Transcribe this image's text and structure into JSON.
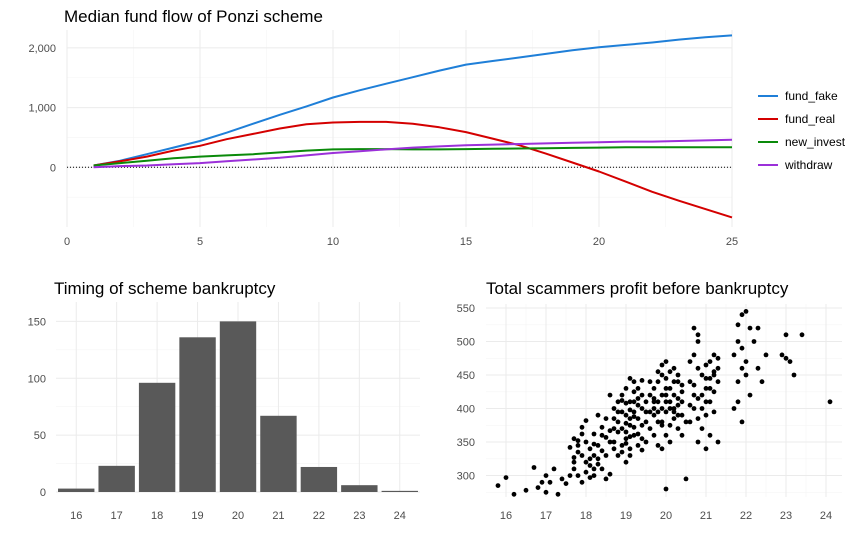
{
  "chart_data": [
    {
      "type": "line",
      "title": "Median fund flow of Ponzi scheme",
      "xlabel": "",
      "ylabel": "",
      "xlim": [
        0,
        25
      ],
      "ylim": [
        -1000,
        2300
      ],
      "x_ticks": [
        0,
        5,
        10,
        15,
        20,
        25
      ],
      "y_ticks": [
        0,
        1000,
        2000
      ],
      "y_tick_labels": [
        "0",
        "1,000",
        "2,000"
      ],
      "reference_line": {
        "y": 0,
        "style": "dotted"
      },
      "grid": true,
      "legend_position": "right",
      "x": [
        1,
        2,
        3,
        4,
        5,
        6,
        7,
        8,
        9,
        10,
        11,
        12,
        13,
        14,
        15,
        16,
        17,
        18,
        19,
        20,
        21,
        22,
        23,
        24,
        25
      ],
      "series": [
        {
          "name": "fund_fake",
          "color": "#1f7fd8",
          "values": [
            30,
            110,
            220,
            330,
            440,
            580,
            730,
            880,
            1020,
            1170,
            1290,
            1400,
            1510,
            1620,
            1720,
            1780,
            1840,
            1900,
            1960,
            2010,
            2050,
            2090,
            2140,
            2180,
            2210
          ]
        },
        {
          "name": "fund_real",
          "color": "#d40000",
          "values": [
            30,
            100,
            180,
            280,
            360,
            470,
            560,
            650,
            720,
            750,
            760,
            760,
            730,
            670,
            590,
            480,
            370,
            230,
            80,
            -70,
            -240,
            -410,
            -560,
            -700,
            -840
          ]
        },
        {
          "name": "new_invest",
          "color": "#0a8a0a",
          "values": [
            30,
            70,
            110,
            150,
            180,
            200,
            220,
            250,
            280,
            300,
            305,
            305,
            300,
            300,
            305,
            310,
            315,
            320,
            325,
            330,
            335,
            335,
            335,
            335,
            335
          ]
        },
        {
          "name": "withdraw",
          "color": "#9b30d9",
          "values": [
            0,
            20,
            30,
            50,
            70,
            100,
            130,
            160,
            200,
            240,
            270,
            300,
            330,
            350,
            370,
            380,
            390,
            400,
            410,
            420,
            430,
            430,
            440,
            450,
            460
          ]
        }
      ]
    },
    {
      "type": "bar",
      "title": "Timing of scheme bankruptcy",
      "xlabel": "",
      "ylabel": "",
      "categories": [
        "16",
        "17",
        "18",
        "19",
        "20",
        "21",
        "22",
        "23",
        "24"
      ],
      "values": [
        3,
        23,
        96,
        136,
        150,
        67,
        22,
        6,
        1
      ],
      "ylim": [
        0,
        160
      ],
      "y_ticks": [
        0,
        50,
        100,
        150
      ],
      "bar_color": "#595959",
      "grid": true
    },
    {
      "type": "scatter",
      "title": "Total scammers profit before bankruptcy",
      "xlabel": "",
      "ylabel": "",
      "xlim": [
        15.5,
        24.4
      ],
      "ylim": [
        268,
        556
      ],
      "x_ticks": [
        16,
        17,
        18,
        19,
        20,
        21,
        22,
        23,
        24
      ],
      "y_ticks": [
        300,
        350,
        400,
        450,
        500,
        550
      ],
      "point_color": "#000000",
      "grid": true,
      "points": [
        [
          16.0,
          297
        ],
        [
          15.8,
          285
        ],
        [
          16.2,
          272
        ],
        [
          16.5,
          278
        ],
        [
          16.8,
          282
        ],
        [
          17.0,
          300
        ],
        [
          16.9,
          290
        ],
        [
          17.2,
          310
        ],
        [
          17.1,
          290
        ],
        [
          17.4,
          295
        ],
        [
          17.3,
          272
        ],
        [
          17.6,
          300
        ],
        [
          17.5,
          288
        ],
        [
          16.7,
          312
        ],
        [
          17.0,
          275
        ],
        [
          17.7,
          320
        ],
        [
          17.8,
          345
        ],
        [
          17.9,
          330
        ],
        [
          17.7,
          310
        ],
        [
          18.0,
          350
        ],
        [
          17.8,
          300
        ],
        [
          17.9,
          372
        ],
        [
          18.0,
          320
        ],
        [
          17.7,
          355
        ],
        [
          18.1,
          340
        ],
        [
          18.2,
          362
        ],
        [
          17.9,
          290
        ],
        [
          18.0,
          305
        ],
        [
          17.8,
          335
        ],
        [
          18.1,
          315
        ],
        [
          18.2,
          330
        ],
        [
          17.6,
          342
        ],
        [
          18.3,
          345
        ],
        [
          18.4,
          360
        ],
        [
          18.2,
          300
        ],
        [
          18.3,
          325
        ],
        [
          18.4,
          310
        ],
        [
          18.5,
          385
        ],
        [
          18.6,
          350
        ],
        [
          18.4,
          337
        ],
        [
          18.3,
          390
        ],
        [
          18.5,
          330
        ],
        [
          18.6,
          302
        ],
        [
          18.5,
          295
        ],
        [
          18.0,
          382
        ],
        [
          17.9,
          362
        ],
        [
          17.8,
          352
        ],
        [
          17.7,
          327
        ],
        [
          18.1,
          297
        ],
        [
          18.2,
          347
        ],
        [
          18.3,
          317
        ],
        [
          18.4,
          372
        ],
        [
          18.6,
          367
        ],
        [
          18.7,
          340
        ],
        [
          18.5,
          357
        ],
        [
          18.1,
          325
        ],
        [
          18.2,
          310
        ],
        [
          18.7,
          400
        ],
        [
          18.8,
          380
        ],
        [
          18.9,
          420
        ],
        [
          18.7,
          350
        ],
        [
          18.8,
          330
        ],
        [
          18.9,
          370
        ],
        [
          19.0,
          390
        ],
        [
          19.1,
          410
        ],
        [
          19.2,
          440
        ],
        [
          18.8,
          365
        ],
        [
          18.9,
          345
        ],
        [
          19.0,
          355
        ],
        [
          19.1,
          375
        ],
        [
          19.2,
          395
        ],
        [
          19.3,
          405
        ],
        [
          19.4,
          420
        ],
        [
          18.7,
          385
        ],
        [
          18.8,
          410
        ],
        [
          18.9,
          395
        ],
        [
          19.0,
          365
        ],
        [
          19.1,
          340
        ],
        [
          19.2,
          360
        ],
        [
          19.3,
          385
        ],
        [
          19.4,
          375
        ],
        [
          19.5,
          395
        ],
        [
          19.0,
          430
        ],
        [
          19.1,
          445
        ],
        [
          19.2,
          425
        ],
        [
          19.3,
          345
        ],
        [
          19.4,
          355
        ],
        [
          18.9,
          335
        ],
        [
          19.0,
          320
        ],
        [
          19.1,
          330
        ],
        [
          19.2,
          410
        ],
        [
          19.3,
          415
        ],
        [
          19.4,
          400
        ],
        [
          19.5,
          350
        ],
        [
          18.6,
          420
        ],
        [
          18.7,
          370
        ],
        [
          18.8,
          395
        ],
        [
          19.0,
          408
        ],
        [
          19.1,
          385
        ],
        [
          19.2,
          372
        ],
        [
          19.3,
          362
        ],
        [
          19.4,
          338
        ],
        [
          19.5,
          380
        ],
        [
          18.9,
          412
        ],
        [
          19.0,
          378
        ],
        [
          19.1,
          398
        ],
        [
          19.2,
          388
        ],
        [
          19.3,
          430
        ],
        [
          19.4,
          442
        ],
        [
          19.5,
          410
        ],
        [
          19.0,
          348
        ],
        [
          19.1,
          358
        ],
        [
          19.6,
          420
        ],
        [
          19.7,
          400
        ],
        [
          19.8,
          440
        ],
        [
          19.9,
          380
        ],
        [
          20.0,
          410
        ],
        [
          20.1,
          430
        ],
        [
          20.2,
          460
        ],
        [
          20.3,
          390
        ],
        [
          19.6,
          370
        ],
        [
          19.7,
          390
        ],
        [
          19.8,
          410
        ],
        [
          19.9,
          450
        ],
        [
          20.0,
          430
        ],
        [
          20.1,
          400
        ],
        [
          20.2,
          420
        ],
        [
          20.3,
          440
        ],
        [
          20.4,
          410
        ],
        [
          19.7,
          360
        ],
        [
          19.8,
          380
        ],
        [
          19.9,
          420
        ],
        [
          20.0,
          395
        ],
        [
          20.1,
          375
        ],
        [
          20.2,
          385
        ],
        [
          20.3,
          405
        ],
        [
          20.4,
          425
        ],
        [
          19.6,
          440
        ],
        [
          19.7,
          430
        ],
        [
          19.8,
          455
        ],
        [
          19.9,
          465
        ],
        [
          20.0,
          445
        ],
        [
          20.1,
          455
        ],
        [
          20.2,
          400
        ],
        [
          20.3,
          370
        ],
        [
          20.4,
          360
        ],
        [
          19.9,
          340
        ],
        [
          20.0,
          360
        ],
        [
          20.1,
          350
        ],
        [
          19.8,
          345
        ],
        [
          19.9,
          400
        ],
        [
          20.0,
          420
        ],
        [
          20.1,
          410
        ],
        [
          20.2,
          395
        ],
        [
          20.3,
          415
        ],
        [
          20.4,
          435
        ],
        [
          19.7,
          415
        ],
        [
          19.8,
          395
        ],
        [
          19.9,
          375
        ],
        [
          20.0,
          280
        ],
        [
          20.5,
          295
        ],
        [
          20.2,
          440
        ],
        [
          20.3,
          450
        ],
        [
          20.4,
          390
        ],
        [
          20.5,
          380
        ],
        [
          19.6,
          395
        ],
        [
          19.7,
          410
        ],
        [
          20.0,
          470
        ],
        [
          20.6,
          440
        ],
        [
          20.7,
          420
        ],
        [
          20.8,
          460
        ],
        [
          20.9,
          400
        ],
        [
          21.0,
          430
        ],
        [
          21.1,
          470
        ],
        [
          21.2,
          450
        ],
        [
          20.6,
          380
        ],
        [
          20.7,
          400
        ],
        [
          20.8,
          350
        ],
        [
          20.9,
          370
        ],
        [
          21.0,
          390
        ],
        [
          21.1,
          410
        ],
        [
          21.2,
          425
        ],
        [
          21.3,
          440
        ],
        [
          20.6,
          470
        ],
        [
          20.7,
          480
        ],
        [
          20.8,
          500
        ],
        [
          20.9,
          450
        ],
        [
          21.0,
          465
        ],
        [
          21.1,
          445
        ],
        [
          21.2,
          480
        ],
        [
          21.3,
          460
        ],
        [
          20.7,
          520
        ],
        [
          20.8,
          510
        ],
        [
          21.0,
          340
        ],
        [
          21.1,
          360
        ],
        [
          21.3,
          350
        ],
        [
          20.9,
          420
        ],
        [
          21.0,
          410
        ],
        [
          21.2,
          395
        ],
        [
          20.6,
          405
        ],
        [
          20.7,
          435
        ],
        [
          20.8,
          385
        ],
        [
          21.1,
          430
        ],
        [
          21.2,
          455
        ],
        [
          21.3,
          475
        ],
        [
          20.8,
          415
        ],
        [
          21.0,
          445
        ],
        [
          21.7,
          480
        ],
        [
          21.8,
          500
        ],
        [
          21.9,
          540
        ],
        [
          22.0,
          545
        ],
        [
          21.8,
          440
        ],
        [
          21.9,
          460
        ],
        [
          22.0,
          470
        ],
        [
          22.1,
          420
        ],
        [
          21.7,
          400
        ],
        [
          21.8,
          410
        ],
        [
          22.0,
          450
        ],
        [
          21.9,
          490
        ],
        [
          22.2,
          500
        ],
        [
          22.3,
          460
        ],
        [
          22.4,
          440
        ],
        [
          22.5,
          480
        ],
        [
          21.9,
          380
        ],
        [
          22.1,
          520
        ],
        [
          21.8,
          525
        ],
        [
          22.3,
          520
        ],
        [
          22.9,
          480
        ],
        [
          23.0,
          510
        ],
        [
          23.1,
          470
        ],
        [
          23.2,
          450
        ],
        [
          23.4,
          510
        ],
        [
          23.0,
          475
        ],
        [
          24.1,
          410
        ]
      ]
    }
  ]
}
